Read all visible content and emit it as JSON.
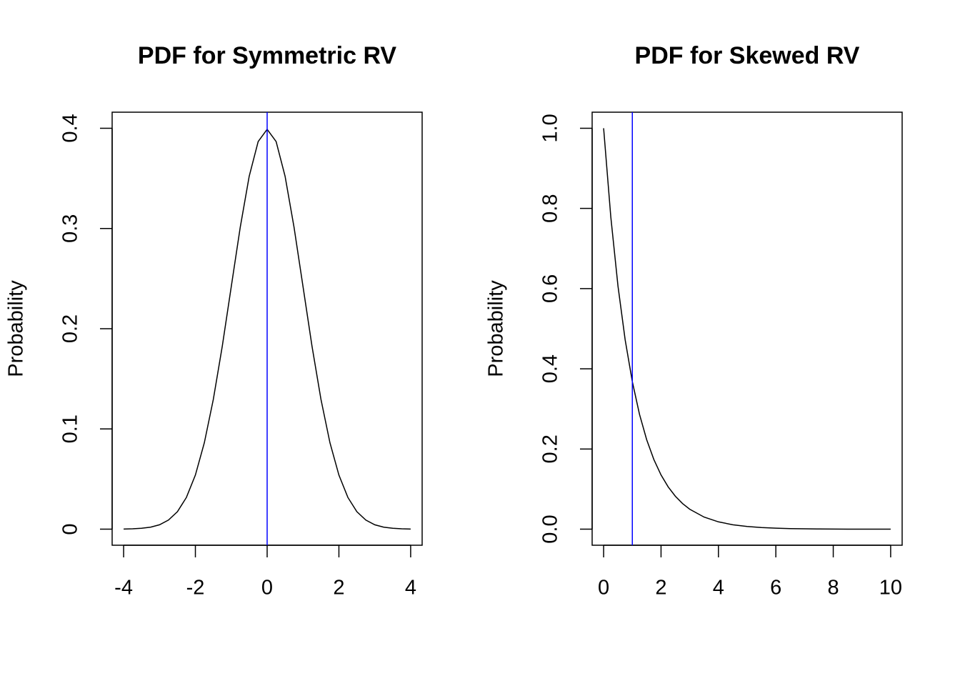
{
  "chart_data": [
    {
      "type": "line",
      "title": "PDF for Symmetric RV",
      "ylabel": "Probability",
      "x": [
        -4,
        -3.75,
        -3.5,
        -3.25,
        -3,
        -2.75,
        -2.5,
        -2.25,
        -2,
        -1.75,
        -1.5,
        -1.25,
        -1,
        -0.75,
        -0.5,
        -0.25,
        0,
        0.25,
        0.5,
        0.75,
        1,
        1.25,
        1.5,
        1.75,
        2,
        2.25,
        2.5,
        2.75,
        3,
        3.25,
        3.5,
        3.75,
        4
      ],
      "values": [
        0.0001,
        0.0004,
        0.0009,
        0.002,
        0.0044,
        0.0091,
        0.0175,
        0.0317,
        0.054,
        0.0863,
        0.1295,
        0.1826,
        0.242,
        0.3011,
        0.3521,
        0.3867,
        0.3989,
        0.3867,
        0.3521,
        0.3011,
        0.242,
        0.1826,
        0.1295,
        0.0863,
        0.054,
        0.0317,
        0.0175,
        0.0091,
        0.0044,
        0.002,
        0.0009,
        0.0004,
        0.0001
      ],
      "color": "#000000",
      "vline": {
        "x": 0,
        "color": "#0000ff"
      },
      "xlim": [
        -4.32,
        4.32
      ],
      "ylim": [
        -0.016,
        0.416
      ],
      "xticks": [
        -4,
        -2,
        0,
        2,
        4
      ],
      "yticks": [
        0.0,
        0.1,
        0.2,
        0.3,
        0.4
      ]
    },
    {
      "type": "line",
      "title": "PDF for Skewed RV",
      "ylabel": "Probability",
      "x": [
        0,
        0.25,
        0.5,
        0.75,
        1,
        1.25,
        1.5,
        1.75,
        2,
        2.25,
        2.5,
        2.75,
        3,
        3.5,
        4,
        4.5,
        5,
        5.5,
        6,
        6.5,
        7,
        7.5,
        8,
        8.5,
        9,
        9.5,
        10
      ],
      "values": [
        1,
        0.7788,
        0.6065,
        0.4724,
        0.3679,
        0.2865,
        0.2231,
        0.1738,
        0.1353,
        0.1054,
        0.0821,
        0.0639,
        0.0498,
        0.0302,
        0.0183,
        0.0111,
        0.0067,
        0.0041,
        0.0025,
        0.0015,
        0.0009,
        0.0006,
        0.0003,
        0.0002,
        0.0001,
        0.0001,
        0
      ],
      "color": "#000000",
      "vline": {
        "x": 1,
        "color": "#0000ff"
      },
      "xlim": [
        -0.4,
        10.4
      ],
      "ylim": [
        -0.04,
        1.04
      ],
      "xticks": [
        0,
        2,
        4,
        6,
        8,
        10
      ],
      "yticks": [
        {
          "value": 0,
          "label": "0.0"
        },
        0.2,
        0.4,
        0.6,
        0.8,
        {
          "value": 1,
          "label": "1.0"
        }
      ]
    }
  ]
}
